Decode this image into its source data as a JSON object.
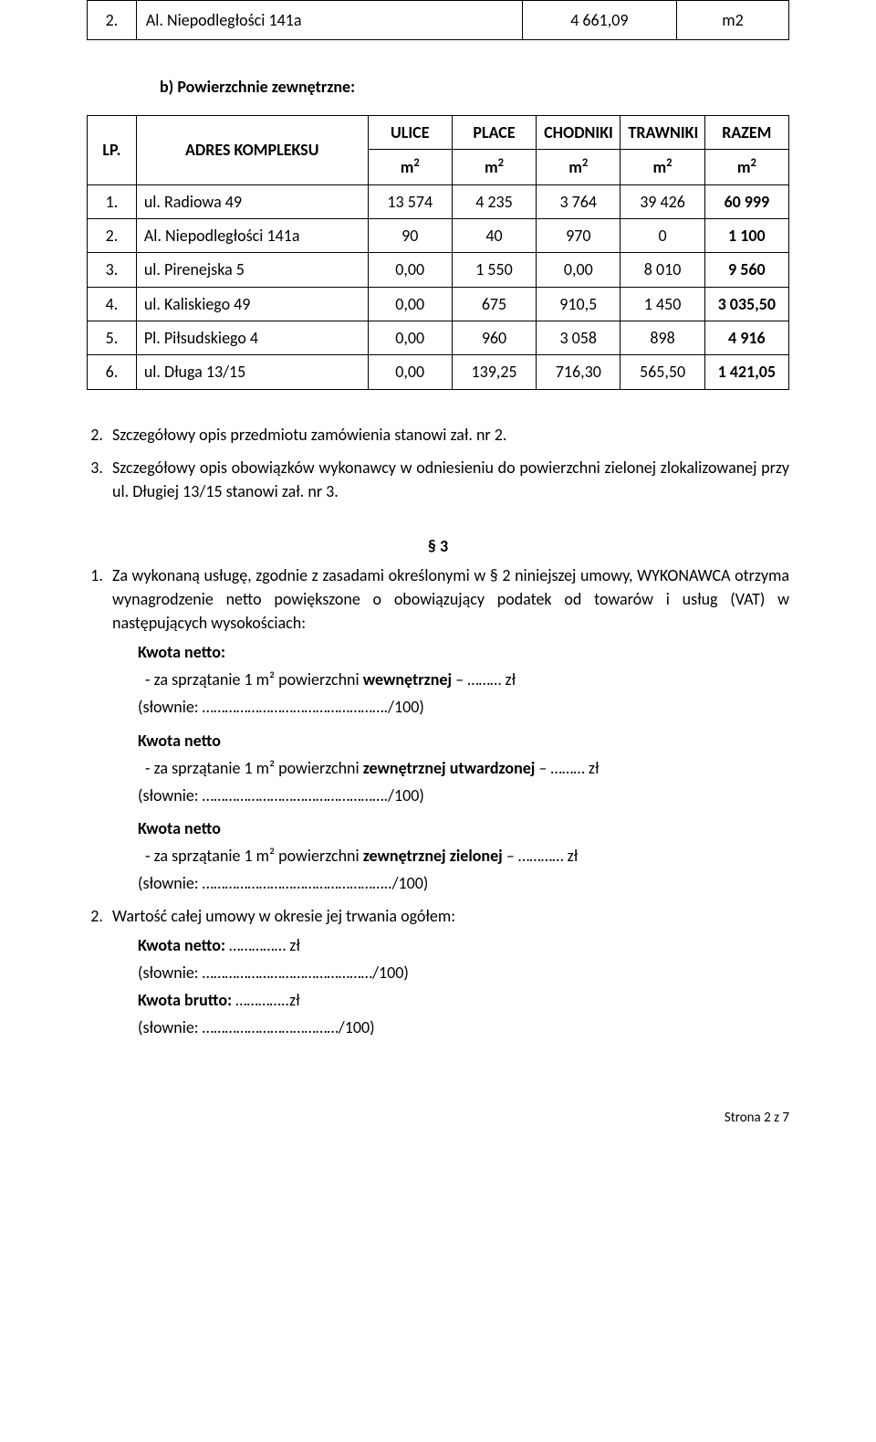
{
  "table1": {
    "col_widths": [
      "7%",
      "55%",
      "22%",
      "16%"
    ],
    "row": {
      "num": "2.",
      "name": "Al. Niepodległości 141a",
      "val": "4 661,09",
      "unit": "m2"
    }
  },
  "heading_b": "b)   Powierzchnie zewnętrzne:",
  "table2": {
    "col_widths": [
      "7%",
      "33%",
      "12%",
      "12%",
      "12%",
      "12%",
      "12%"
    ],
    "header": {
      "lp": "LP.",
      "adres": "ADRES KOMPLEKSU",
      "cols": [
        "ULICE",
        "PLACE",
        "CHODNIKI",
        "TRAWNIKI",
        "RAZEM"
      ],
      "unit": "m",
      "sup": "2"
    },
    "rows": [
      {
        "n": "1.",
        "name": "ul. Radiowa 49",
        "c": [
          "13 574",
          "4 235",
          "3 764",
          "39 426",
          "60 999"
        ],
        "bold_last": true
      },
      {
        "n": "2.",
        "name": "Al. Niepodległości 141a",
        "c": [
          "90",
          "40",
          "970",
          "0",
          "1 100"
        ],
        "bold_last": true
      },
      {
        "n": "3.",
        "name": "ul. Pirenejska 5",
        "c": [
          "0,00",
          "1 550",
          "0,00",
          "8 010",
          "9 560"
        ],
        "bold_last": true
      },
      {
        "n": "4.",
        "name": "ul. Kaliskiego 49",
        "c": [
          "0,00",
          "675",
          "910,5",
          "1 450",
          "3 035,50"
        ],
        "bold_last": true
      },
      {
        "n": "5.",
        "name": "Pl. Piłsudskiego 4",
        "c": [
          "0,00",
          "960",
          "3 058",
          "898",
          "4 916"
        ],
        "bold_last": true
      },
      {
        "n": "6.",
        "name": "ul. Długa 13/15",
        "c": [
          "0,00",
          "139,25",
          "716,30",
          "565,50",
          "1 421,05"
        ],
        "bold_last": true
      }
    ]
  },
  "list_after_table": [
    "Szczegółowy opis przedmiotu zamówienia stanowi zał. nr 2.",
    "Szczegółowy opis obowiązków wykonawcy w odniesieniu do powierzchni zielonej zlokalizowanej przy ul. Długiej 13/15 stanowi zał. nr 3."
  ],
  "list_start": 2,
  "section3_title": "§ 3",
  "section3": {
    "item1_pre": "Za wykonaną usługę, zgodnie z zasadami określonymi w § 2 niniejszej umowy, WYKONAWCA otrzyma wynagrodzenie netto powiększone o obowiązujący podatek od towarów i usług (VAT) w następujących wysokościach:",
    "kwoty": [
      {
        "title": "Kwota netto:",
        "line_pre": "za sprzątanie 1 m² powierzchni ",
        "bold": "wewnętrznej",
        "line_post": " – ……… zł",
        "slownie": "(słownie: …………………………………………./100)"
      },
      {
        "title": "Kwota netto",
        "line_pre": "za sprzątanie 1 m² powierzchni ",
        "bold": "zewnętrznej utwardzonej",
        "line_post": " – ……… zł",
        "slownie": "(słownie: …………………………………………./100)"
      },
      {
        "title": "Kwota netto",
        "line_pre": "za sprzątanie 1 m² powierzchni ",
        "bold": "zewnętrznej zielonej",
        "line_post": " – ………… zł",
        "slownie": "(słownie: …………………………………………../100)"
      }
    ],
    "item2": "Wartość całej umowy w okresie jej trwania ogółem:",
    "item2_lines": [
      {
        "pre": "Kwota netto: ",
        "post": "…………… zł",
        "bold_pre": true
      },
      {
        "pre": "",
        "post": "(słownie: ………………………………………/100)",
        "bold_pre": false
      },
      {
        "pre": "Kwota brutto: ",
        "post": "…………..zł",
        "bold_pre": true
      },
      {
        "pre": "",
        "post": "(słownie: ………………………………/100)",
        "bold_pre": false
      }
    ]
  },
  "footer": "Strona 2 z 7"
}
